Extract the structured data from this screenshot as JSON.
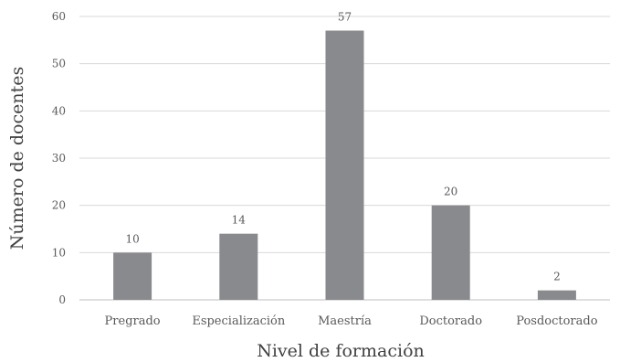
{
  "chart_data": {
    "type": "bar",
    "title": "",
    "xlabel": "Nivel de formación",
    "ylabel": "Número de docentes",
    "categories": [
      "Pregrado",
      "Especialización",
      "Maestría",
      "Doctorado",
      "Posdoctorado"
    ],
    "values": [
      10,
      14,
      57,
      20,
      2
    ],
    "data_labels": [
      "10",
      "14",
      "57",
      "20",
      "2"
    ],
    "ylim": [
      0,
      60
    ],
    "yticks": [
      0,
      10,
      20,
      30,
      40,
      50,
      60
    ],
    "ytick_labels": [
      "0",
      "10",
      "20",
      "30",
      "40",
      "50",
      "60"
    ],
    "grid": true,
    "legend": "none",
    "bar_color": "#898a8d",
    "grid_color": "#d9d9d9",
    "text_color": "#595959"
  }
}
